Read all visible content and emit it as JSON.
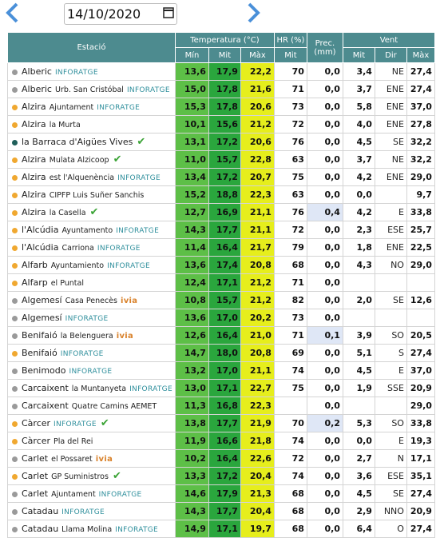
{
  "date": "14/10/2020",
  "header": {
    "station": "Estació",
    "temperature": "Temperatura (°C)",
    "humidity": "HR (%)",
    "precipitation": "Prec. (mm)",
    "wind": "Vent",
    "temp_cols": [
      "Mín",
      "Mit",
      "Màx"
    ],
    "humidity_col": "Mit",
    "wind_cols": [
      "Mit",
      "Dir",
      "Màx"
    ]
  },
  "rows": [
    {
      "dot": "#9a9a9a",
      "name": "Alberic",
      "sub": null,
      "brand": "INFORATGE",
      "check": false,
      "values": [
        "13,6",
        "17,9",
        "22,2",
        "70",
        "0,0",
        "3,4",
        "NE",
        "27,4"
      ]
    },
    {
      "dot": "#9a9a9a",
      "name": "Alberic",
      "sub": "Urb. San Cristóbal",
      "brand": "INFORATGE",
      "check": false,
      "values": [
        "15,0",
        "17,8",
        "21,6",
        "71",
        "0,0",
        "3,7",
        "ENE",
        "27,4"
      ]
    },
    {
      "dot": "#f0a830",
      "name": "Alzira",
      "sub": "Ajuntament",
      "brand": "INFORATGE",
      "check": false,
      "values": [
        "15,3",
        "17,8",
        "20,6",
        "73",
        "0,0",
        "5,8",
        "ENE",
        "37,0"
      ]
    },
    {
      "dot": "#f0a830",
      "name": "Alzira",
      "sub": "la Murta",
      "brand": null,
      "check": false,
      "values": [
        "10,1",
        "15,6",
        "21,2",
        "72",
        "0,0",
        "4,0",
        "ENE",
        "27,8"
      ]
    },
    {
      "dot": "#1f5f5a",
      "name": "la Barraca d'Aigües Vives",
      "sub": null,
      "brand": null,
      "check": true,
      "values": [
        "13,1",
        "17,2",
        "20,6",
        "76",
        "0,0",
        "4,5",
        "SE",
        "32,2"
      ]
    },
    {
      "dot": "#f0a830",
      "name": "Alzira",
      "sub": "Mulata Alzicoop",
      "brand": null,
      "check": true,
      "values": [
        "11,0",
        "15,7",
        "22,8",
        "63",
        "0,0",
        "3,7",
        "NE",
        "32,2"
      ]
    },
    {
      "dot": "#f0a830",
      "name": "Alzira",
      "sub": "est l'Alquenència",
      "brand": "INFORATGE",
      "check": false,
      "values": [
        "13,4",
        "17,2",
        "20,7",
        "75",
        "0,0",
        "4,2",
        "ENE",
        "29,0"
      ]
    },
    {
      "dot": "#f0a830",
      "name": "Alzira",
      "sub": "CIPFP Luis Suñer Sanchis",
      "brand": null,
      "check": false,
      "values": [
        "15,2",
        "18,8",
        "22,3",
        "63",
        "0,0",
        "0,0",
        null,
        "9,7"
      ]
    },
    {
      "dot": "#f0a830",
      "name": "Alzira",
      "sub": "la Casella",
      "brand": null,
      "check": true,
      "values": [
        "12,7",
        "16,9",
        "21,1",
        "76",
        "0,4",
        "4,2",
        "E",
        "33,8"
      ]
    },
    {
      "dot": "#f0a830",
      "name": "l'Alcúdia",
      "sub": "Ayuntamento",
      "brand": "INFORATGE",
      "check": false,
      "values": [
        "14,3",
        "17,7",
        "21,1",
        "72",
        "0,0",
        "2,3",
        "ESE",
        "25,7"
      ]
    },
    {
      "dot": "#f0a830",
      "name": "l'Alcúdia",
      "sub": "Carriona",
      "brand": "INFORATGE",
      "check": false,
      "values": [
        "11,4",
        "16,4",
        "21,7",
        "79",
        "0,0",
        "1,8",
        "ENE",
        "22,5"
      ]
    },
    {
      "dot": "#f0a830",
      "name": "Alfarb",
      "sub": "Ayuntamiento",
      "brand": "INFORATGE",
      "check": false,
      "values": [
        "13,6",
        "17,4",
        "20,8",
        "68",
        "0,0",
        "4,3",
        "NO",
        "29,0"
      ]
    },
    {
      "dot": "#f0a830",
      "name": "Alfarp",
      "sub": "el Puntal",
      "brand": null,
      "check": false,
      "values": [
        "12,4",
        "17,1",
        "21,2",
        "71",
        "0,0",
        null,
        null,
        null
      ]
    },
    {
      "dot": "#9a9a9a",
      "name": "Algemesí",
      "sub": "Casa Penecès",
      "brand": "ivia",
      "check": false,
      "values": [
        "10,8",
        "15,7",
        "21,2",
        "82",
        "0,0",
        "2,0",
        "SE",
        "12,6"
      ]
    },
    {
      "dot": "#9a9a9a",
      "name": "Algemesí",
      "sub": null,
      "brand": "INFORATGE",
      "check": false,
      "values": [
        "13,6",
        "17,0",
        "20,2",
        "73",
        "0,0",
        null,
        null,
        null
      ]
    },
    {
      "dot": "#9a9a9a",
      "name": "Benifaió",
      "sub": "la Belenguera",
      "brand": "ivia",
      "check": false,
      "values": [
        "12,6",
        "16,4",
        "21,0",
        "71",
        "0,1",
        "3,9",
        "SO",
        "20,5"
      ]
    },
    {
      "dot": "#f0a830",
      "name": "Benifaió",
      "sub": null,
      "brand": "INFORATGE",
      "check": false,
      "values": [
        "14,7",
        "18,0",
        "20,8",
        "69",
        "0,0",
        "5,1",
        "S",
        "27,4"
      ]
    },
    {
      "dot": "#9a9a9a",
      "name": "Benimodo",
      "sub": null,
      "brand": "INFORATGE",
      "check": false,
      "values": [
        "13,2",
        "17,0",
        "21,1",
        "74",
        "0,0",
        "4,5",
        "E",
        "37,0"
      ]
    },
    {
      "dot": "#9a9a9a",
      "name": "Carcaixent",
      "sub": "la Muntanyeta",
      "brand": "INFORATGE",
      "check": false,
      "values": [
        "13,0",
        "17,1",
        "22,7",
        "75",
        "0,0",
        "1,9",
        "SSE",
        "20,9"
      ]
    },
    {
      "dot": "#9a9a9a",
      "name": "Carcaixent",
      "sub": "Quatre Camins AEMET",
      "brand": null,
      "check": false,
      "values": [
        "11,3",
        "16,8",
        "22,3",
        null,
        "0,0",
        null,
        null,
        "29,0"
      ]
    },
    {
      "dot": "#f0a830",
      "name": "Càrcer",
      "sub": null,
      "brand": "INFORATGE",
      "check": true,
      "values": [
        "13,8",
        "17,7",
        "21,9",
        "70",
        "0,2",
        "5,3",
        "SO",
        "33,8"
      ]
    },
    {
      "dot": "#f0a830",
      "name": "Càrcer",
      "sub": "Pla del Rei",
      "brand": null,
      "check": false,
      "values": [
        "11,9",
        "16,6",
        "21,8",
        "74",
        "0,0",
        "0,0",
        "E",
        "19,3"
      ]
    },
    {
      "dot": "#9a9a9a",
      "name": "Carlet",
      "sub": "el Possaret",
      "brand": "ivia",
      "check": false,
      "values": [
        "10,2",
        "16,4",
        "22,6",
        "72",
        "0,0",
        "2,7",
        "N",
        "17,1"
      ]
    },
    {
      "dot": "#f0a830",
      "name": "Carlet",
      "sub": "GP Suministros",
      "brand": null,
      "check": true,
      "values": [
        "13,3",
        "17,2",
        "20,4",
        "74",
        "0,0",
        "3,6",
        "ESE",
        "35,1"
      ]
    },
    {
      "dot": "#9a9a9a",
      "name": "Carlet",
      "sub": "Ajuntament",
      "brand": "INFORATGE",
      "check": false,
      "values": [
        "14,6",
        "17,9",
        "21,3",
        "68",
        "0,0",
        "4,5",
        "SE",
        "27,4"
      ]
    },
    {
      "dot": "#9a9a9a",
      "name": "Catadau",
      "sub": null,
      "brand": "INFORATGE",
      "check": false,
      "values": [
        "14,3",
        "17,7",
        "20,4",
        "68",
        "0,0",
        "2,9",
        "NNO",
        "20,9"
      ]
    },
    {
      "dot": "#9a9a9a",
      "name": "Catadau",
      "sub": "Llama Molina",
      "brand": "INFORATGE",
      "check": false,
      "values": [
        "14,9",
        "17,1",
        "19,7",
        "68",
        "0,0",
        "6,4",
        "O",
        "27,4"
      ]
    }
  ]
}
